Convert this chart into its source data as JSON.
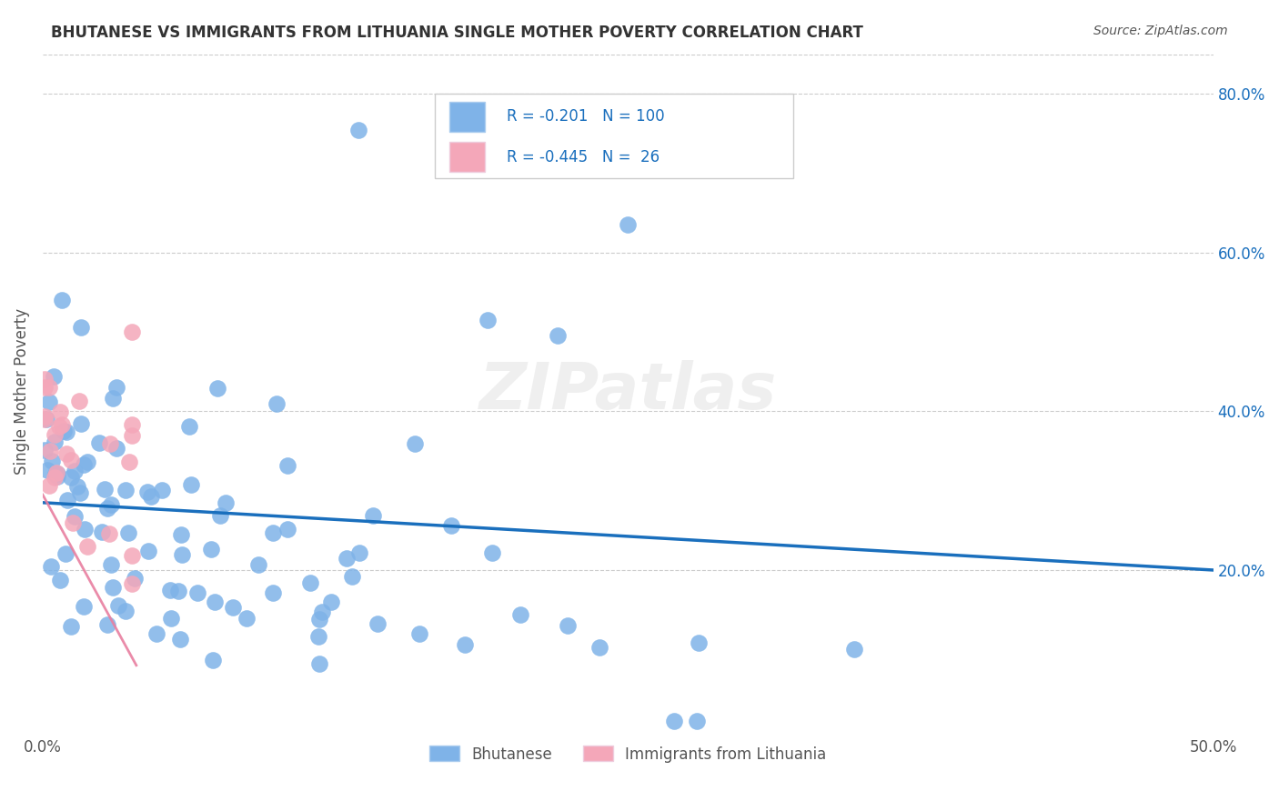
{
  "title": "BHUTANESE VS IMMIGRANTS FROM LITHUANIA SINGLE MOTHER POVERTY CORRELATION CHART",
  "source": "Source: ZipAtlas.com",
  "ylabel": "Single Mother Poverty",
  "ylabel_right_labels": [
    "20.0%",
    "40.0%",
    "60.0%",
    "80.0%"
  ],
  "ylabel_right_values": [
    0.2,
    0.4,
    0.6,
    0.8
  ],
  "legend_label1": "Bhutanese",
  "legend_label2": "Immigrants from Lithuania",
  "r1": "-0.201",
  "n1": "100",
  "r2": "-0.445",
  "n2": "26",
  "color1": "#7fb3e8",
  "color2": "#f4a7b9",
  "line_color1": "#1a6fbd",
  "line_color2": "#e87fa0",
  "legend_edge1": "#aaccee",
  "legend_edge2": "#eeccdd",
  "watermark": "ZIPatlas",
  "xlim": [
    0.0,
    0.5
  ],
  "ylim": [
    0.0,
    0.85
  ],
  "trend1_x": [
    0.0,
    0.5
  ],
  "trend1_y": [
    0.285,
    0.2
  ],
  "trend2_x": [
    0.0,
    0.04
  ],
  "trend2_y": [
    0.295,
    0.08
  ]
}
